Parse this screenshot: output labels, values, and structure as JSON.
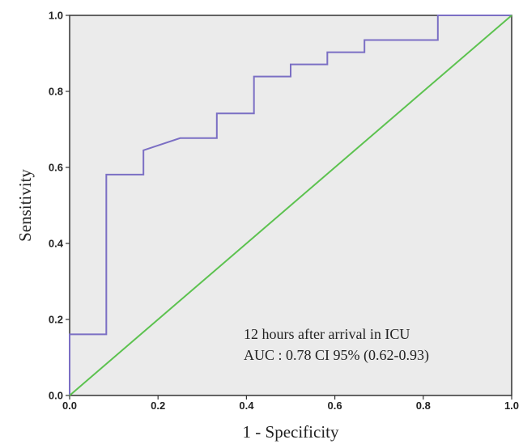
{
  "chart_data": {
    "type": "line",
    "xlabel": "1 - Specificity",
    "ylabel": "Sensitivity",
    "xlim": [
      0,
      1
    ],
    "ylim": [
      0,
      1
    ],
    "x_ticks": [
      "0.0",
      "0.2",
      "0.4",
      "0.6",
      "0.8",
      "1.0"
    ],
    "y_ticks": [
      "0.0",
      "0.2",
      "0.4",
      "0.6",
      "0.8",
      "1.0"
    ],
    "grid": false,
    "plot_background": "#ebebeb",
    "annotation": {
      "line1": "12 hours after arrival in ICU",
      "line2": "AUC : 0.78 CI 95% (0.62-0.93)"
    },
    "series": [
      {
        "color": "#7b6fc4",
        "x": [
          0,
          0,
          0.083,
          0.083,
          0.167,
          0.167,
          0.25,
          0.333,
          0.333,
          0.417,
          0.417,
          0.5,
          0.5,
          0.583,
          0.583,
          0.667,
          0.667,
          0.833,
          0.833,
          1.0
        ],
        "y": [
          0,
          0.161,
          0.161,
          0.581,
          0.581,
          0.645,
          0.677,
          0.677,
          0.742,
          0.742,
          0.839,
          0.839,
          0.871,
          0.871,
          0.903,
          0.903,
          0.935,
          0.935,
          1.0,
          1.0
        ]
      },
      {
        "color": "#5cc24f",
        "x": [
          0,
          1
        ],
        "y": [
          0,
          1
        ]
      }
    ]
  }
}
